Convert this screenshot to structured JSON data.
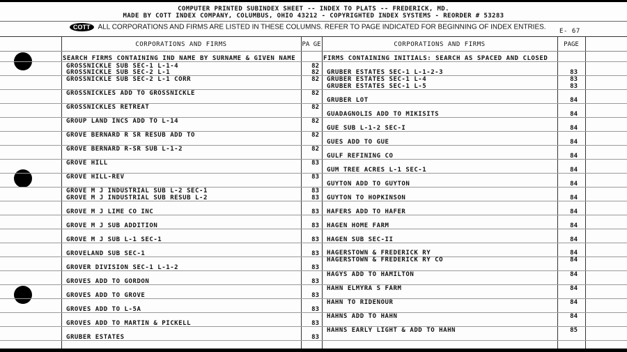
{
  "header": {
    "line1": "COMPUTER PRINTED SUBINDEX SHEET -- INDEX TO PLATS -- FREDERICK, MD.",
    "line2": "MADE BY COTT INDEX COMPANY, COLUMBUS, OHIO 43212 - COPYRIGHTED INDEX SYSTEMS - REORDER # 53283",
    "logo": "COTT",
    "notice": "ALL CORPORATIONS AND FIRMS ARE LISTED IN THESE COLUMNS. REFER TO PAGE INDICATED FOR BEGINNING OF INDEX ENTRIES.",
    "sheet_code": "E- 67"
  },
  "left": {
    "column_header": "CORPORATIONS AND FIRMS",
    "page_header": "PA GE",
    "subheading": "SEARCH FIRMS CONTAINING IND NAME BY SURNAME & GIVEN NAME",
    "entries": [
      {
        "name": "GROSSNICKLE SUB SEC-1 L-1-4",
        "page": "82"
      },
      {
        "name": "GROSSNICKLE SUB SEC-2 L-1",
        "page": "82"
      },
      {
        "name": "GROSSNICKLE SUB SEC-2 L-1 CORR",
        "page": "82"
      },
      {
        "name": "GROSSNICKLES ADD TO GROSSNICKLE",
        "page": "82"
      },
      {
        "name": "GROSSNICKLES RETREAT",
        "page": "82"
      },
      {
        "name": "GROUP LAND INCS ADD TO L-14",
        "page": "82"
      },
      {
        "name": "GROVE BERNARD R SR RESUB ADD TO",
        "page": "82"
      },
      {
        "name": "GROVE BERNARD R-SR SUB L-1-2",
        "page": "82"
      },
      {
        "name": "GROVE HILL",
        "page": "83"
      },
      {
        "name": "GROVE HILL-REV",
        "page": "83"
      },
      {
        "name": "GROVE M J INDUSTRIAL SUB L-2 SEC-1",
        "page": "83"
      },
      {
        "name": "GROVE M J INDUSTRIAL SUB RESUB L-2",
        "page": "83"
      },
      {
        "name": "GROVE M J LIME CO INC",
        "page": "83"
      },
      {
        "name": "GROVE M J SUB ADDITION",
        "page": "83"
      },
      {
        "name": "GROVE M J SUB L-1 SEC-1",
        "page": "83"
      },
      {
        "name": "GROVELAND SUB SEC-1",
        "page": "83"
      },
      {
        "name": "GROVER DIVISION SEC-1 L-1-2",
        "page": "83"
      },
      {
        "name": "GROVES ADD TO GORDON",
        "page": "83"
      },
      {
        "name": "GROVES ADD TO GROVE",
        "page": "83"
      },
      {
        "name": "GROVES ADD TO L-5A",
        "page": "83"
      },
      {
        "name": "GROVES ADD TO MARTIN & PICKELL",
        "page": "83"
      },
      {
        "name": "GRUBER ESTATES",
        "page": "83"
      }
    ]
  },
  "right": {
    "column_header": "CORPORATIONS AND FIRMS",
    "page_header": "PAGE",
    "subheading": "FIRMS CONTAINING INITIALS:  SEARCH AS SPACED AND CLOSED",
    "entries": [
      {
        "name": "GRUBER ESTATES SEC-1 L-1-2-3",
        "page": "83"
      },
      {
        "name": "GRUBER ESTATES SEC-1 L-4",
        "page": "83"
      },
      {
        "name": "GRUBER ESTATES SEC-1 L-5",
        "page": "83"
      },
      {
        "name": "GRUBER LOT",
        "page": "84"
      },
      {
        "name": "GUADAGNOLIS ADD TO MIKISITS",
        "page": "84"
      },
      {
        "name": "GUE SUB L-1-2 SEC-I",
        "page": "84"
      },
      {
        "name": "GUES ADD TO GUE",
        "page": "84"
      },
      {
        "name": "GULF REFINING CO",
        "page": "84"
      },
      {
        "name": "GUM TREE ACRES L-1 SEC-1",
        "page": "84"
      },
      {
        "name": "GUYTON ADD TO GUYTON",
        "page": "84"
      },
      {
        "name": "GUYTON TO HOPKINSON",
        "page": "84"
      },
      {
        "name": "HAFERS ADD TO HAFER",
        "page": "84"
      },
      {
        "name": "HAGEN HOME FARM",
        "page": "84"
      },
      {
        "name": "HAGEN SUB SEC-II",
        "page": "84"
      },
      {
        "name": "HAGERSTOWN & FREDERICK RY",
        "page": "84"
      },
      {
        "name": "HAGERSTOWN & FREDERICK RY CO",
        "page": "84"
      },
      {
        "name": "HAGYS ADD TO HAMILTON",
        "page": "84"
      },
      {
        "name": "HAHN ELMYRA S FARM",
        "page": "84"
      },
      {
        "name": "HAHN TO RIDENOUR",
        "page": "84"
      },
      {
        "name": "HAHNS ADD TO HAHN",
        "page": "84"
      },
      {
        "name": "HAHNS EARLY LIGHT & ADD TO HAHN",
        "page": "85"
      }
    ]
  }
}
